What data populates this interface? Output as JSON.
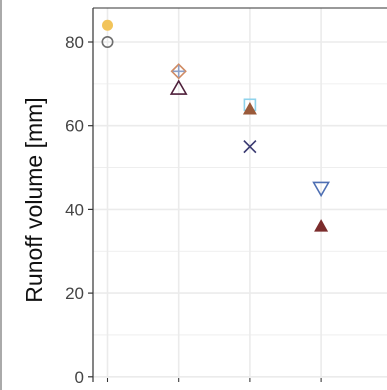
{
  "chart_data": {
    "type": "scatter",
    "title": "",
    "xlabel": "",
    "ylabel": "Runoff volume [mm]",
    "ylim": [
      0,
      88
    ],
    "yticks": [
      0,
      20,
      40,
      60,
      80
    ],
    "x_positions": [
      1,
      2,
      3,
      4
    ],
    "grid": true,
    "legend": "none",
    "panel_background": "#ffffff",
    "grid_color": "#ebebeb",
    "points": [
      {
        "x": 1,
        "y": 84,
        "marker": "circle-filled",
        "color": "#F2C45A"
      },
      {
        "x": 1,
        "y": 80,
        "marker": "circle-open",
        "color": "#6E6E6E"
      },
      {
        "x": 2,
        "y": 73,
        "marker": "diamond-open",
        "color": "#D08A62"
      },
      {
        "x": 2,
        "y": 73,
        "marker": "plus",
        "color": "#8DA0C8"
      },
      {
        "x": 2,
        "y": 69,
        "marker": "triangle-open",
        "color": "#4E1F3A"
      },
      {
        "x": 3,
        "y": 65,
        "marker": "square-open",
        "color": "#8FD3EC"
      },
      {
        "x": 3,
        "y": 64,
        "marker": "triangle-filled",
        "color": "#9A5A3A"
      },
      {
        "x": 3,
        "y": 55,
        "marker": "cross",
        "color": "#3A3A72"
      },
      {
        "x": 4,
        "y": 45,
        "marker": "triangle-down-open",
        "color": "#4E6FB3"
      },
      {
        "x": 4,
        "y": 36,
        "marker": "triangle-filled",
        "color": "#7B2C2C"
      }
    ]
  }
}
